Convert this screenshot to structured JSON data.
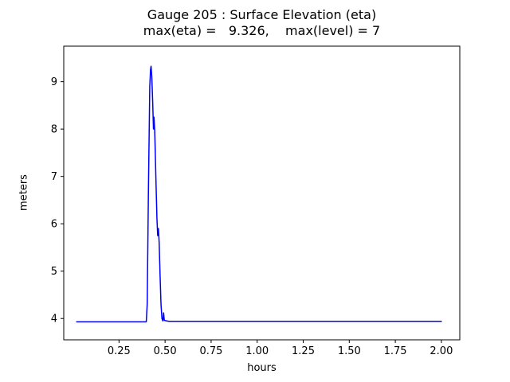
{
  "chart_data": {
    "type": "line",
    "title": "Gauge 205 : Surface Elevation (eta)",
    "subtitle": "max(eta) =   9.326,    max(level) = 7",
    "xlabel": "hours",
    "ylabel": "meters",
    "max_eta": 9.326,
    "max_level": 7,
    "grid": false,
    "legend": null,
    "xlim": [
      -0.05,
      2.1
    ],
    "ylim": [
      3.55,
      9.75
    ],
    "xticks": {
      "values": [
        0.25,
        0.5,
        0.75,
        1.0,
        1.25,
        1.5,
        1.75,
        2.0
      ],
      "labels": [
        "0.25",
        "0.50",
        "0.75",
        "1.00",
        "1.25",
        "1.50",
        "1.75",
        "2.00"
      ]
    },
    "yticks": {
      "values": [
        4,
        5,
        6,
        7,
        8,
        9
      ],
      "labels": [
        "4",
        "5",
        "6",
        "7",
        "8",
        "9"
      ]
    },
    "series": [
      {
        "name": "eta",
        "color": "#0000ff",
        "x": [
          0.02,
          0.398,
          0.403,
          0.41,
          0.417,
          0.421,
          0.424,
          0.428,
          0.433,
          0.437,
          0.44,
          0.444,
          0.45,
          0.456,
          0.46,
          0.464,
          0.468,
          0.473,
          0.478,
          0.483,
          0.488,
          0.492,
          0.496,
          0.52,
          2.0
        ],
        "y": [
          3.93,
          3.93,
          4.3,
          6.8,
          8.9,
          9.25,
          9.326,
          9.1,
          8.55,
          8.0,
          8.25,
          7.95,
          7.0,
          6.1,
          5.75,
          5.9,
          5.6,
          4.9,
          4.3,
          4.0,
          3.95,
          4.12,
          3.96,
          3.94,
          3.94
        ]
      }
    ]
  }
}
